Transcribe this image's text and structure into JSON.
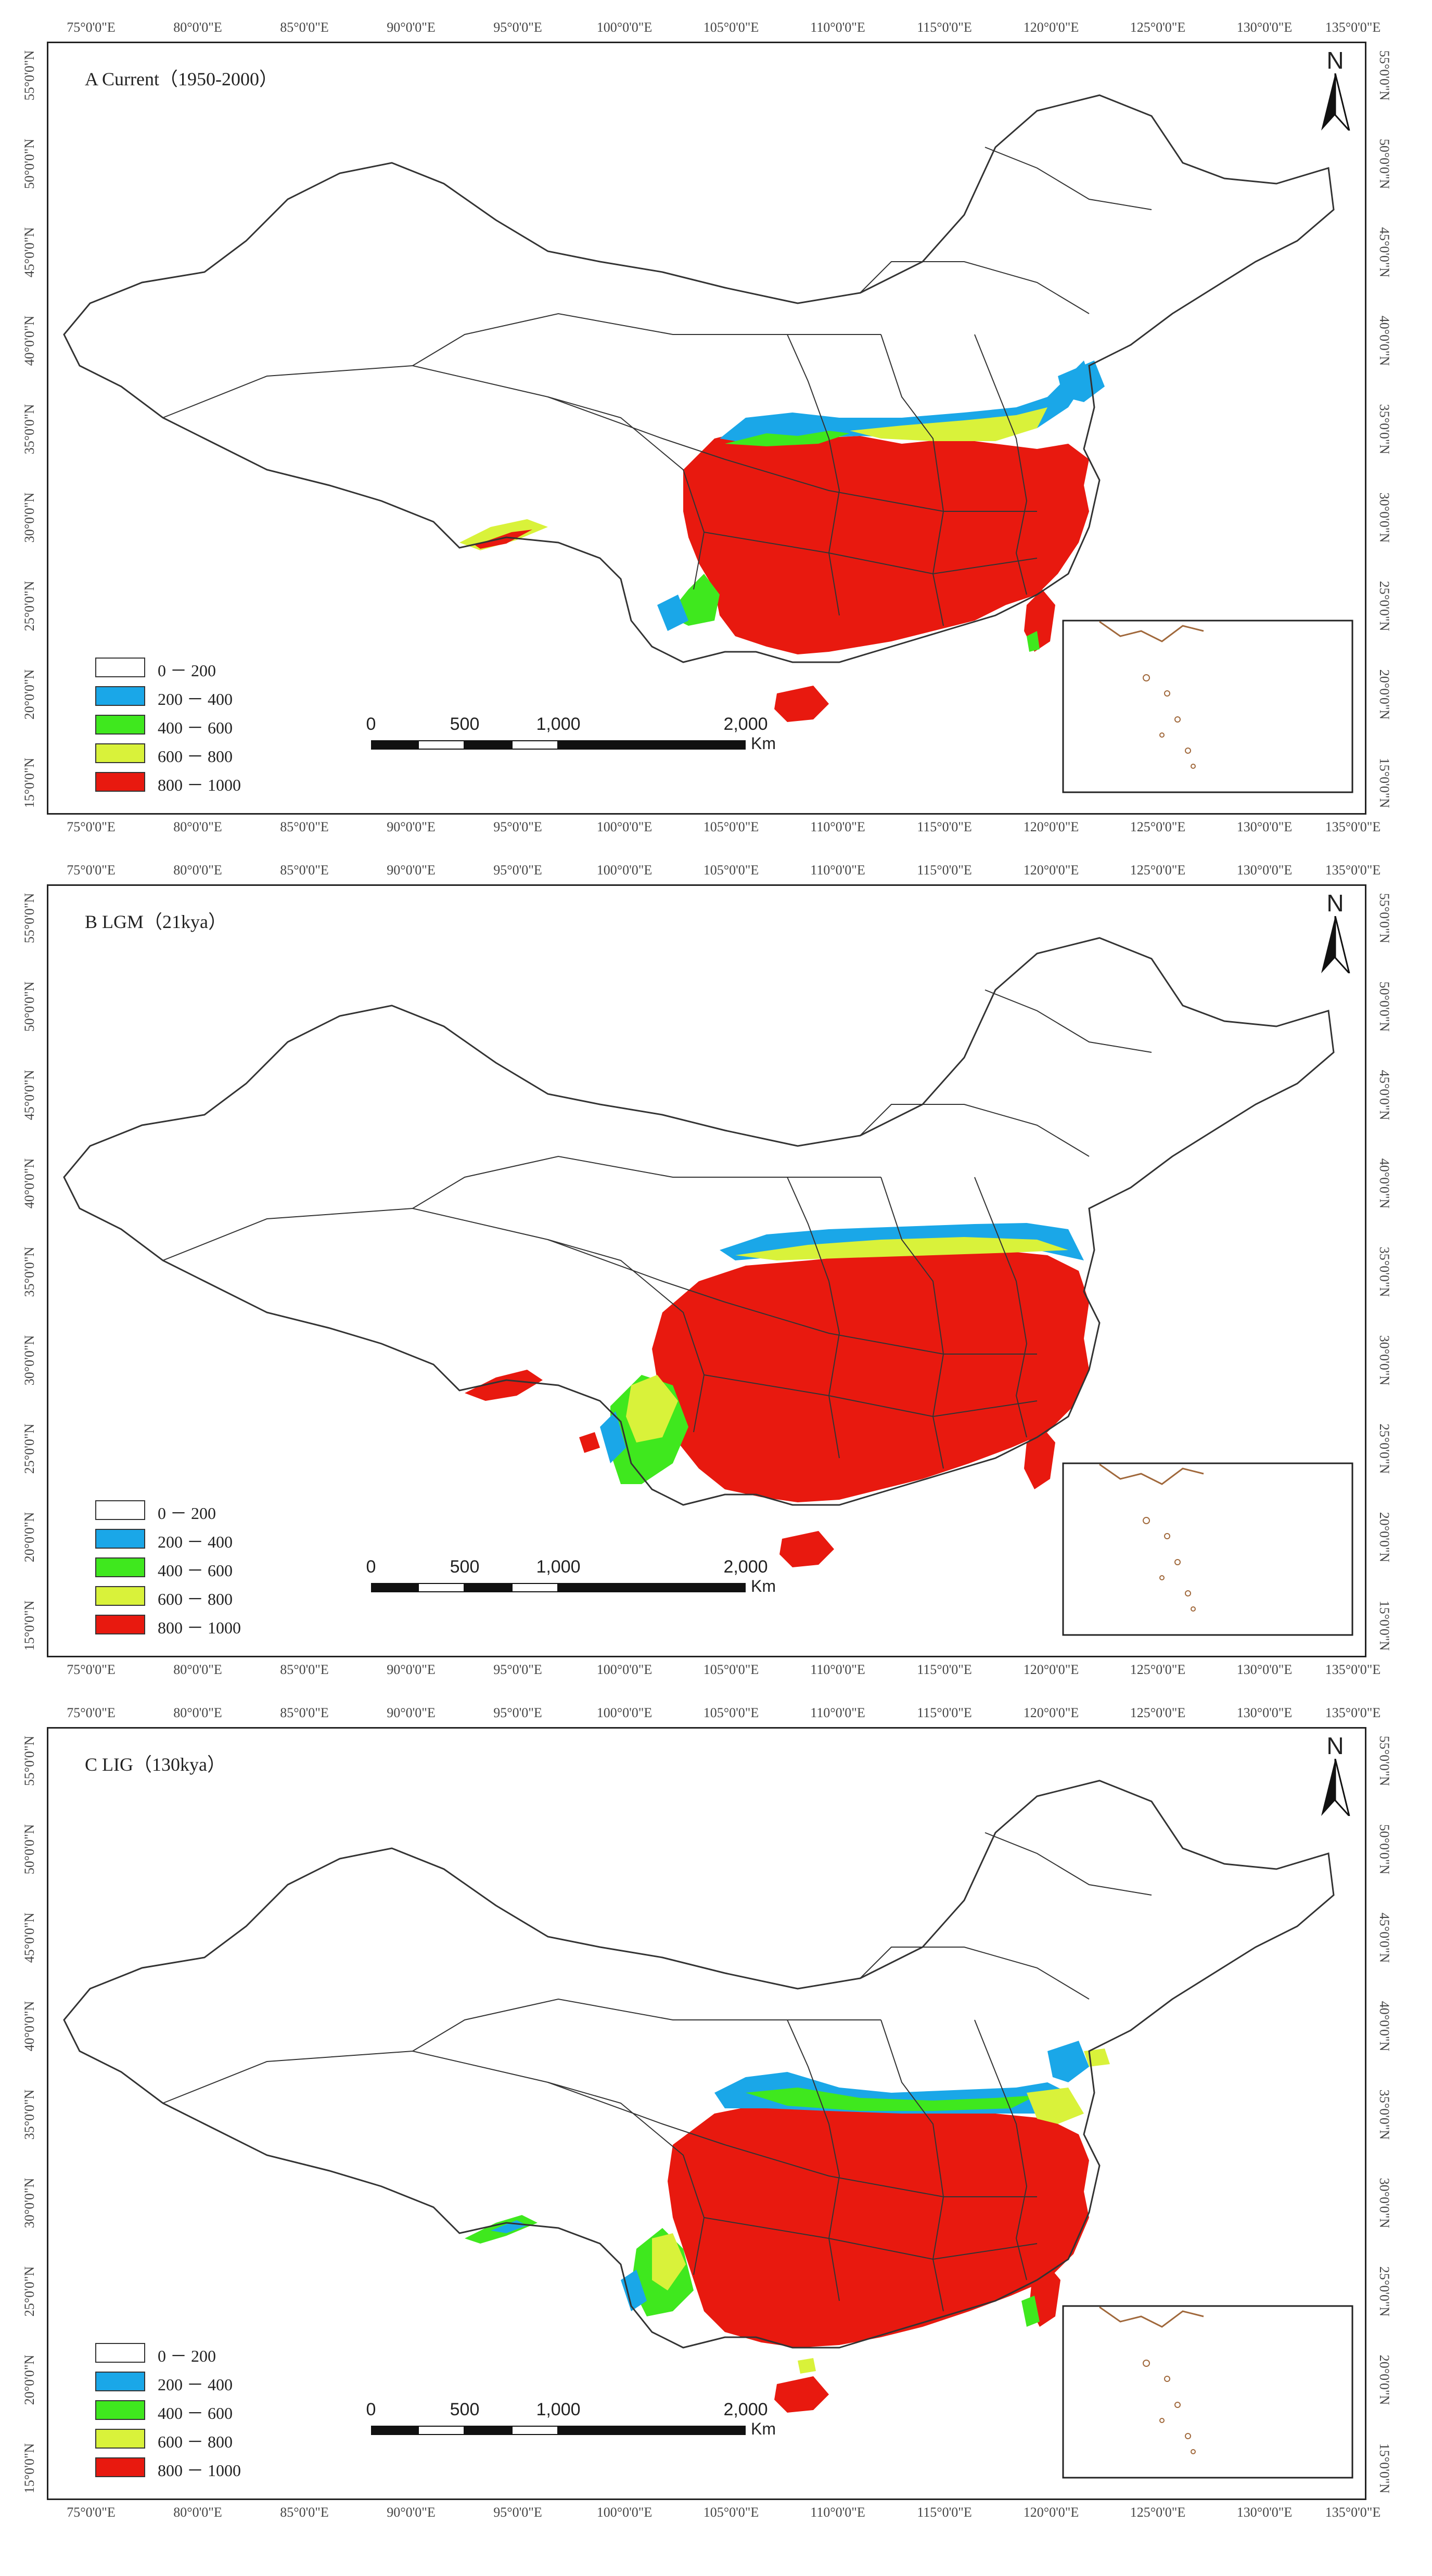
{
  "colors": {
    "class_0": "#ffffff",
    "class_1": "#1aa7e8",
    "class_2": "#3fe81e",
    "class_3": "#d9f23a",
    "class_4": "#e8190f",
    "outline": "#333333",
    "inset_coast": "#a0683b"
  },
  "legend": [
    {
      "label": "0 － 200",
      "color": "#ffffff"
    },
    {
      "label": "200 － 400",
      "color": "#1aa7e8"
    },
    {
      "label": "400 － 600",
      "color": "#3fe81e"
    },
    {
      "label": "600 － 800",
      "color": "#d9f23a"
    },
    {
      "label": "800 － 1000",
      "color": "#e8190f"
    }
  ],
  "north_label": "N",
  "scale_bar": {
    "labels": [
      "0",
      "500",
      "1,000",
      "2,000"
    ],
    "unit": "Km"
  },
  "lon_ticks": [
    "75°0'0\"E",
    "80°0'0\"E",
    "85°0'0\"E",
    "90°0'0\"E",
    "95°0'0\"E",
    "100°0'0\"E",
    "105°0'0\"E",
    "110°0'0\"E",
    "115°0'0\"E",
    "120°0'0\"E",
    "125°0'0\"E",
    "130°0'0\"E",
    "135°0'0\"E"
  ],
  "lat_ticks": [
    "55°0'0\"N",
    "50°0'0\"N",
    "45°0'0\"N",
    "40°0'0\"N",
    "35°0'0\"N",
    "30°0'0\"N",
    "25°0'0\"N",
    "20°0'0\"N",
    "15°0'0\"N"
  ],
  "panels": [
    {
      "title": "A  Current（1950-2000）"
    },
    {
      "title": "B  LGM（21kya）"
    },
    {
      "title": "C  LIG（130kya）"
    }
  ]
}
